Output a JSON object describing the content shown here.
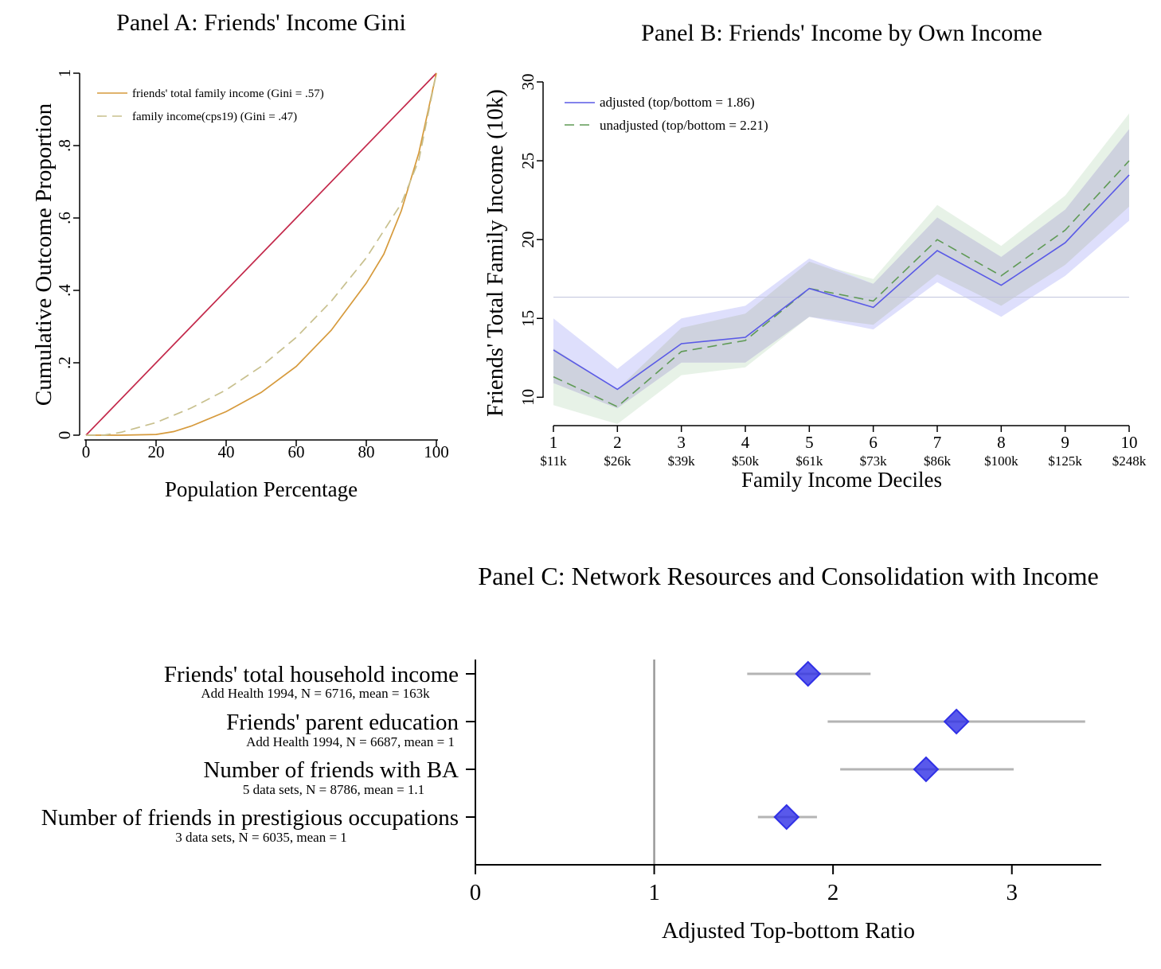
{
  "colors": {
    "equality": "#c3284a",
    "friends_lorenz": "#d69a3c",
    "cps_lorenz": "#c8c08e",
    "adjusted": "#5a5ae6",
    "adjusted_band": "#d8d9fb",
    "unadjusted": "#5f9a55",
    "unadjusted_band": "#e3f0e3",
    "overlap_band": "#c9cdd4",
    "reference": "#c2c5dd",
    "marker": "#3030e6",
    "ci": "#b4b4b4",
    "vline": "#999999"
  },
  "chart_data": [
    {
      "id": "panel-a",
      "type": "line",
      "title": "Panel A: Friends' Income Gini",
      "xlabel": "Population Percentage",
      "ylabel": "Cumulative Outcome Proportion",
      "xlim": [
        0,
        100
      ],
      "ylim": [
        0,
        1
      ],
      "xticks": [
        {
          "value": 0,
          "label": "0"
        },
        {
          "value": 20,
          "label": "20"
        },
        {
          "value": 40,
          "label": "40"
        },
        {
          "value": 60,
          "label": "60"
        },
        {
          "value": 80,
          "label": "80"
        },
        {
          "value": 100,
          "label": "100"
        }
      ],
      "yticks": [
        {
          "value": 0,
          "label": "0"
        },
        {
          "value": 0.2,
          "label": ".2"
        },
        {
          "value": 0.4,
          "label": ".4"
        },
        {
          "value": 0.6,
          "label": ".6"
        },
        {
          "value": 0.8,
          "label": ".8"
        },
        {
          "value": 1,
          "label": "1"
        }
      ],
      "series": [
        {
          "name": "line of equality",
          "key": "equality",
          "style": "solid",
          "x": [
            0,
            100
          ],
          "y": [
            0,
            1
          ]
        },
        {
          "name": "friends' total family income (Gini = .57)",
          "key": "friends",
          "style": "solid",
          "x": [
            0,
            10,
            20,
            25,
            30,
            40,
            50,
            60,
            70,
            80,
            85,
            90,
            95,
            100
          ],
          "y": [
            0,
            0,
            0.002,
            0.01,
            0.025,
            0.065,
            0.118,
            0.19,
            0.29,
            0.42,
            0.5,
            0.62,
            0.78,
            1
          ]
        },
        {
          "name": "family income(cps19) (Gini = .47)",
          "key": "cps",
          "style": "dashed",
          "x": [
            0,
            5,
            10,
            20,
            30,
            40,
            50,
            60,
            70,
            80,
            90,
            95,
            100
          ],
          "y": [
            0,
            0,
            0.008,
            0.035,
            0.075,
            0.125,
            0.19,
            0.27,
            0.37,
            0.49,
            0.64,
            0.76,
            1
          ]
        }
      ],
      "legend": [
        {
          "label": "friends' total family income (Gini = .57)",
          "key": "friends",
          "style": "solid"
        },
        {
          "label": "family income(cps19) (Gini = .47)",
          "key": "cps",
          "style": "dashed"
        }
      ],
      "legend_position": "top-left"
    },
    {
      "id": "panel-b",
      "type": "line",
      "title": "Panel B: Friends' Income by Own Income",
      "xlabel": "Family Income Deciles",
      "ylabel": "Friends' Total Family Income (10k)",
      "xlim": [
        1,
        10
      ],
      "ylim": [
        8.2,
        30
      ],
      "categories": [
        {
          "decile": "1",
          "income": "$11k"
        },
        {
          "decile": "2",
          "income": "$26k"
        },
        {
          "decile": "3",
          "income": "$39k"
        },
        {
          "decile": "4",
          "income": "$50k"
        },
        {
          "decile": "5",
          "income": "$61k"
        },
        {
          "decile": "6",
          "income": "$73k"
        },
        {
          "decile": "7",
          "income": "$86k"
        },
        {
          "decile": "8",
          "income": "$100k"
        },
        {
          "decile": "9",
          "income": "$125k"
        },
        {
          "decile": "10",
          "income": "$248k"
        }
      ],
      "yticks": [
        {
          "value": 10,
          "label": "10"
        },
        {
          "value": 15,
          "label": "15"
        },
        {
          "value": 20,
          "label": "20"
        },
        {
          "value": 25,
          "label": "25"
        },
        {
          "value": 30,
          "label": "30"
        }
      ],
      "reference_line": 16.35,
      "series": [
        {
          "name": "adjusted (top/bottom = 1.86)",
          "key": "adjusted",
          "style": "solid",
          "values": [
            13.0,
            10.5,
            13.4,
            13.8,
            16.9,
            15.7,
            19.3,
            17.1,
            19.8,
            24.1
          ],
          "lower": [
            10.9,
            9.3,
            12.2,
            12.2,
            15.1,
            14.3,
            17.3,
            15.1,
            17.7,
            21.2
          ],
          "upper": [
            15.0,
            11.8,
            15.0,
            15.8,
            18.8,
            17.2,
            21.4,
            18.9,
            21.9,
            27.0
          ]
        },
        {
          "name": "unadjusted (top/bottom = 2.21)",
          "key": "unadjusted",
          "style": "dashed",
          "values": [
            11.3,
            9.4,
            12.9,
            13.6,
            16.9,
            16.1,
            20.0,
            17.7,
            20.6,
            25.0
          ],
          "lower": [
            9.5,
            8.3,
            11.4,
            11.9,
            15.1,
            14.6,
            17.8,
            15.8,
            18.4,
            22.1
          ],
          "upper": [
            13.1,
            10.5,
            14.4,
            15.3,
            18.6,
            17.5,
            22.2,
            19.6,
            22.8,
            28.0
          ]
        }
      ],
      "legend": [
        {
          "label": "adjusted (top/bottom = 1.86)",
          "key": "adjusted",
          "style": "solid"
        },
        {
          "label": "unadjusted (top/bottom = 2.21)",
          "key": "unadjusted",
          "style": "dashed"
        }
      ],
      "legend_position": "top-left"
    },
    {
      "id": "panel-c",
      "type": "scatter",
      "title": "Panel C: Network Resources and Consolidation with Income",
      "xlabel": "Adjusted Top-bottom Ratio",
      "xlim": [
        0,
        3.5
      ],
      "xticks": [
        {
          "value": 0,
          "label": "0"
        },
        {
          "value": 1,
          "label": "1"
        },
        {
          "value": 2,
          "label": "2"
        },
        {
          "value": 3,
          "label": "3"
        }
      ],
      "reference_x": 1,
      "rows": [
        {
          "label": "Friends' total household income",
          "sub": "Add Health 1994, N = 6716, mean = 163k",
          "value": 1.86,
          "lo": 1.52,
          "hi": 2.21
        },
        {
          "label": "Friends' parent education",
          "sub": "Add Health 1994, N = 6687, mean = 1",
          "value": 2.69,
          "lo": 1.97,
          "hi": 3.41
        },
        {
          "label": "Number of friends with BA",
          "sub": "5 data sets, N = 8786, mean = 1.1",
          "value": 2.52,
          "lo": 2.04,
          "hi": 3.01
        },
        {
          "label": "Number of friends in prestigious occupations",
          "sub": "3 data sets, N = 6035, mean = 1",
          "value": 1.74,
          "lo": 1.58,
          "hi": 1.91
        }
      ]
    }
  ]
}
